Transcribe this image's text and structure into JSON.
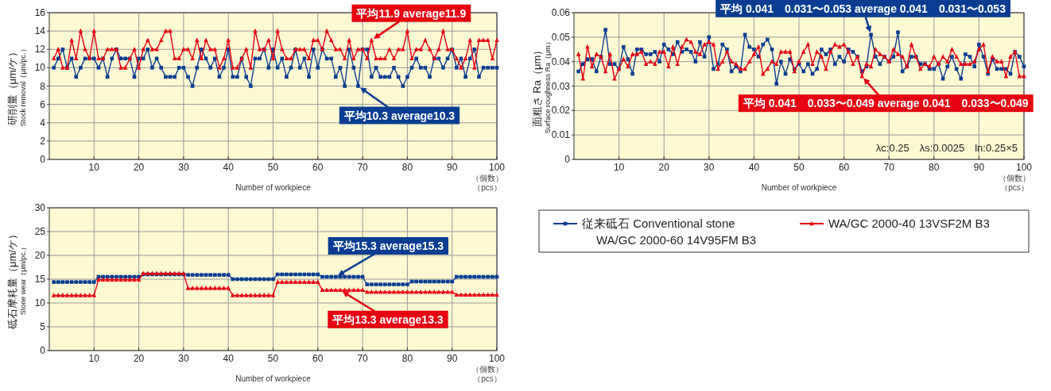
{
  "chart_data": [
    {
      "type": "line",
      "ylabel": "研削量（μm/ケ）\nStock removal（μm/pc.）",
      "xlabel": "Number of workpiece",
      "xlim": [
        0,
        100
      ],
      "xticks": [
        10,
        20,
        30,
        40,
        50,
        60,
        70,
        80,
        90,
        100
      ],
      "ylim": [
        0,
        16
      ],
      "yticks": [
        0,
        2,
        4,
        6,
        8,
        10,
        12,
        14,
        16
      ],
      "grid": true,
      "x": [
        1,
        2,
        3,
        4,
        5,
        6,
        7,
        8,
        9,
        10,
        11,
        12,
        13,
        14,
        15,
        16,
        17,
        18,
        19,
        20,
        21,
        22,
        23,
        24,
        25,
        26,
        27,
        28,
        29,
        30,
        31,
        32,
        33,
        34,
        35,
        36,
        37,
        38,
        39,
        40,
        41,
        42,
        43,
        44,
        45,
        46,
        47,
        48,
        49,
        50,
        51,
        52,
        53,
        54,
        55,
        56,
        57,
        58,
        59,
        60,
        61,
        62,
        63,
        64,
        65,
        66,
        67,
        68,
        69,
        70,
        71,
        72,
        73,
        74,
        75,
        76,
        77,
        78,
        79,
        80,
        81,
        82,
        83,
        84,
        85,
        86,
        87,
        88,
        89,
        90,
        91,
        92,
        93,
        94,
        95,
        96,
        97,
        98,
        99,
        100
      ],
      "series": [
        {
          "color": "#0a3d91",
          "marker": "square",
          "values": [
            10,
            11,
            12,
            10,
            11,
            9,
            10,
            11,
            11,
            11,
            10,
            11,
            9,
            11,
            12,
            11,
            11,
            11,
            9,
            11,
            11,
            12,
            10,
            11,
            10,
            9,
            9,
            9,
            10,
            10,
            9,
            8,
            10,
            12,
            11,
            10,
            11,
            9,
            10,
            12,
            9,
            9,
            11,
            9,
            8,
            11,
            11,
            12,
            10,
            12,
            10,
            11,
            9,
            10,
            12,
            10,
            11,
            9,
            12,
            10,
            12,
            11,
            11,
            9,
            10,
            8,
            12,
            10,
            8,
            12,
            12,
            9,
            10,
            9,
            9,
            9,
            10,
            9,
            8,
            9,
            10,
            11,
            10,
            10,
            9,
            11,
            11,
            10,
            11,
            12,
            10,
            11,
            9,
            11,
            12,
            9,
            10,
            10,
            10,
            10
          ]
        },
        {
          "color": "#e60012",
          "marker": "triangle",
          "values": [
            11,
            12,
            10,
            10,
            13,
            11,
            14,
            12,
            11,
            14,
            11,
            11,
            12,
            12,
            12,
            10,
            10,
            11,
            12,
            10,
            12,
            13,
            12,
            12,
            13,
            14,
            14,
            11,
            11,
            12,
            12,
            11,
            13,
            11,
            13,
            12,
            12,
            10,
            11,
            13,
            10,
            10,
            11,
            12,
            10,
            14,
            12,
            12,
            13,
            11,
            14,
            12,
            11,
            11,
            12,
            12,
            12,
            11,
            13,
            13,
            12,
            14,
            13,
            12,
            12,
            11,
            13,
            11,
            12,
            12,
            11,
            13,
            11,
            11,
            11,
            12,
            11,
            12,
            12,
            14,
            11,
            12,
            12,
            13,
            12,
            11,
            12,
            14,
            12,
            12,
            11,
            10,
            11,
            13,
            10,
            13,
            13,
            13,
            11,
            13
          ]
        }
      ],
      "annotations": [
        {
          "text": "平均11.9  average11.9",
          "x": 72,
          "y": 13
        },
        {
          "text": "平均10.3  average10.3",
          "x": 69,
          "y": 8
        },
        "（個数）",
        "（pcs）"
      ]
    },
    {
      "type": "line",
      "ylabel": "面粗さ Ra（μm）\nSurface roughness Ra（μm）",
      "xlabel": "Number of workpiece",
      "xlim": [
        0,
        100
      ],
      "xticks": [
        10,
        20,
        30,
        40,
        50,
        60,
        70,
        80,
        90,
        100
      ],
      "ylim": [
        0,
        0.06
      ],
      "yticks": [
        0,
        0.01,
        0.02,
        0.03,
        0.04,
        0.05,
        0.06
      ],
      "grid": true,
      "x": [
        1,
        2,
        3,
        4,
        5,
        6,
        7,
        8,
        9,
        10,
        11,
        12,
        13,
        14,
        15,
        16,
        17,
        18,
        19,
        20,
        21,
        22,
        23,
        24,
        25,
        26,
        27,
        28,
        29,
        30,
        31,
        32,
        33,
        34,
        35,
        36,
        37,
        38,
        39,
        40,
        41,
        42,
        43,
        44,
        45,
        46,
        47,
        48,
        49,
        50,
        51,
        52,
        53,
        54,
        55,
        56,
        57,
        58,
        59,
        60,
        61,
        62,
        63,
        64,
        65,
        66,
        67,
        68,
        69,
        70,
        71,
        72,
        73,
        74,
        75,
        76,
        77,
        78,
        79,
        80,
        81,
        82,
        83,
        84,
        85,
        86,
        87,
        88,
        89,
        90,
        91,
        92,
        93,
        94,
        95,
        96,
        97,
        98,
        99,
        100
      ],
      "series": [
        {
          "color": "#0a3d91",
          "marker": "square",
          "values": [
            0.036,
            0.039,
            0.041,
            0.041,
            0.036,
            0.042,
            0.053,
            0.039,
            0.039,
            0.037,
            0.046,
            0.041,
            0.035,
            0.045,
            0.045,
            0.043,
            0.043,
            0.044,
            0.04,
            0.047,
            0.045,
            0.043,
            0.048,
            0.044,
            0.045,
            0.044,
            0.04,
            0.048,
            0.042,
            0.05,
            0.037,
            0.039,
            0.047,
            0.045,
            0.036,
            0.038,
            0.036,
            0.051,
            0.046,
            0.045,
            0.042,
            0.047,
            0.049,
            0.045,
            0.031,
            0.04,
            0.035,
            0.041,
            0.037,
            0.039,
            0.036,
            0.039,
            0.035,
            0.037,
            0.045,
            0.043,
            0.045,
            0.039,
            0.042,
            0.04,
            0.045,
            0.044,
            0.042,
            0.036,
            0.038,
            0.051,
            0.042,
            0.039,
            0.042,
            0.04,
            0.042,
            0.052,
            0.036,
            0.038,
            0.042,
            0.042,
            0.039,
            0.039,
            0.037,
            0.037,
            0.039,
            0.033,
            0.038,
            0.042,
            0.037,
            0.033,
            0.043,
            0.042,
            0.038,
            0.047,
            0.042,
            0.035,
            0.041,
            0.037,
            0.037,
            0.037,
            0.035,
            0.044,
            0.042,
            0.038
          ]
        },
        {
          "color": "#e60012",
          "marker": "triangle",
          "values": [
            0.043,
            0.033,
            0.046,
            0.038,
            0.043,
            0.042,
            0.036,
            0.043,
            0.033,
            0.037,
            0.041,
            0.038,
            0.043,
            0.043,
            0.044,
            0.039,
            0.04,
            0.039,
            0.044,
            0.044,
            0.038,
            0.046,
            0.039,
            0.046,
            0.049,
            0.048,
            0.044,
            0.043,
            0.047,
            0.048,
            0.047,
            0.037,
            0.04,
            0.044,
            0.04,
            0.039,
            0.037,
            0.037,
            0.04,
            0.043,
            0.046,
            0.035,
            0.037,
            0.04,
            0.039,
            0.044,
            0.044,
            0.044,
            0.036,
            0.04,
            0.044,
            0.047,
            0.039,
            0.044,
            0.042,
            0.037,
            0.044,
            0.047,
            0.046,
            0.047,
            0.044,
            0.039,
            0.042,
            0.034,
            0.039,
            0.038,
            0.045,
            0.043,
            0.042,
            0.04,
            0.045,
            0.043,
            0.042,
            0.038,
            0.047,
            0.042,
            0.037,
            0.039,
            0.038,
            0.042,
            0.039,
            0.042,
            0.04,
            0.045,
            0.042,
            0.039,
            0.039,
            0.039,
            0.04,
            0.045,
            0.047,
            0.036,
            0.042,
            0.04,
            0.04,
            0.034,
            0.042,
            0.044,
            0.034,
            0.034
          ]
        }
      ],
      "annotations": [
        {
          "text": "平均 0.041　0.031〜0.053  average 0.041　0.031〜0.053",
          "x": 66,
          "y": 0.051
        },
        {
          "text": "平均 0.041　0.033〜0.049  average 0.041　0.033〜0.049",
          "x": 64,
          "y": 0.034
        },
        "λc:0.25　λs:0.0025　ln:0.25×5",
        "（個数）",
        "（pcs）"
      ]
    },
    {
      "type": "line",
      "ylabel": "砥石摩耗量（μm/ケ）\nStone wear（μm/pc.）",
      "xlabel": "Number of workpiece",
      "xlim": [
        0,
        100
      ],
      "xticks": [
        10,
        20,
        30,
        40,
        50,
        60,
        70,
        80,
        90,
        100
      ],
      "ylim": [
        0,
        30
      ],
      "yticks": [
        0,
        5,
        10,
        15,
        20,
        25,
        30
      ],
      "grid": true,
      "legend": "right",
      "x": [
        1,
        2,
        3,
        4,
        5,
        6,
        7,
        8,
        9,
        10,
        11,
        12,
        13,
        14,
        15,
        16,
        17,
        18,
        19,
        20,
        21,
        22,
        23,
        24,
        25,
        26,
        27,
        28,
        29,
        30,
        31,
        32,
        33,
        34,
        35,
        36,
        37,
        38,
        39,
        40,
        41,
        42,
        43,
        44,
        45,
        46,
        47,
        48,
        49,
        50,
        51,
        52,
        53,
        54,
        55,
        56,
        57,
        58,
        59,
        60,
        61,
        62,
        63,
        64,
        65,
        66,
        67,
        68,
        69,
        70,
        71,
        72,
        73,
        74,
        75,
        76,
        77,
        78,
        79,
        80,
        81,
        82,
        83,
        84,
        85,
        86,
        87,
        88,
        89,
        90,
        91,
        92,
        93,
        94,
        95,
        96,
        97,
        98,
        99,
        100
      ],
      "series": [
        {
          "name": "従来砥石 Conventional stone\nWA/GC 2000-60 14V95FM B3",
          "color": "#0a3d91",
          "marker": "square",
          "values": [
            14.4,
            14.4,
            14.4,
            14.4,
            14.4,
            14.4,
            14.4,
            14.4,
            14.4,
            14.4,
            15.5,
            15.5,
            15.5,
            15.5,
            15.5,
            15.5,
            15.5,
            15.5,
            15.5,
            15.5,
            16,
            16,
            16,
            16,
            16,
            16,
            16,
            16,
            16,
            16,
            15.9,
            15.9,
            15.9,
            15.9,
            15.9,
            15.9,
            15.9,
            15.9,
            15.9,
            15.9,
            15,
            15,
            15,
            15,
            15,
            15,
            15,
            15,
            15,
            15,
            16,
            16,
            16,
            16,
            16,
            16,
            16,
            16,
            16,
            16,
            15.5,
            15.5,
            15.5,
            15.5,
            15.5,
            15.5,
            15.5,
            15.5,
            15.5,
            15.5,
            13.9,
            13.9,
            13.9,
            13.9,
            13.9,
            13.9,
            13.9,
            13.9,
            13.9,
            13.9,
            14.5,
            14.5,
            14.5,
            14.5,
            14.5,
            14.5,
            14.5,
            14.5,
            14.5,
            14.5,
            15.5,
            15.5,
            15.5,
            15.5,
            15.5,
            15.5,
            15.5,
            15.5,
            15.5,
            15.5
          ]
        },
        {
          "name": "WA/GC 2000-40 13VSF2M B3",
          "color": "#e60012",
          "marker": "triangle",
          "values": [
            11.6,
            11.6,
            11.6,
            11.6,
            11.6,
            11.6,
            11.6,
            11.6,
            11.6,
            11.6,
            14.9,
            14.9,
            14.9,
            14.9,
            14.9,
            14.9,
            14.9,
            14.9,
            14.9,
            14.9,
            16.2,
            16.2,
            16.2,
            16.2,
            16.2,
            16.2,
            16.2,
            16.2,
            16.2,
            16.2,
            13.1,
            13.1,
            13.1,
            13.1,
            13.1,
            13.1,
            13.1,
            13.1,
            13.1,
            13.1,
            11.6,
            11.6,
            11.6,
            11.6,
            11.6,
            11.6,
            11.6,
            11.6,
            11.6,
            11.6,
            14.4,
            14.4,
            14.4,
            14.4,
            14.4,
            14.4,
            14.4,
            14.4,
            14.4,
            14.4,
            12.7,
            12.7,
            12.7,
            12.7,
            12.7,
            12.7,
            12.7,
            12.7,
            12.7,
            12.7,
            12.3,
            12.3,
            12.3,
            12.3,
            12.3,
            12.3,
            12.3,
            12.3,
            12.3,
            12.3,
            12.3,
            12.3,
            12.3,
            12.3,
            12.3,
            12.3,
            12.3,
            12.3,
            12.3,
            12.3,
            11.7,
            11.7,
            11.7,
            11.7,
            11.7,
            11.7,
            11.7,
            11.7,
            11.7,
            11.7
          ]
        }
      ],
      "annotations": [
        {
          "text": "平均15.3  average15.3",
          "x": 64,
          "y": 15.5
        },
        {
          "text": "平均13.3  average13.3",
          "x": 65,
          "y": 12.7
        },
        "（個数）",
        "（pcs）"
      ]
    }
  ]
}
